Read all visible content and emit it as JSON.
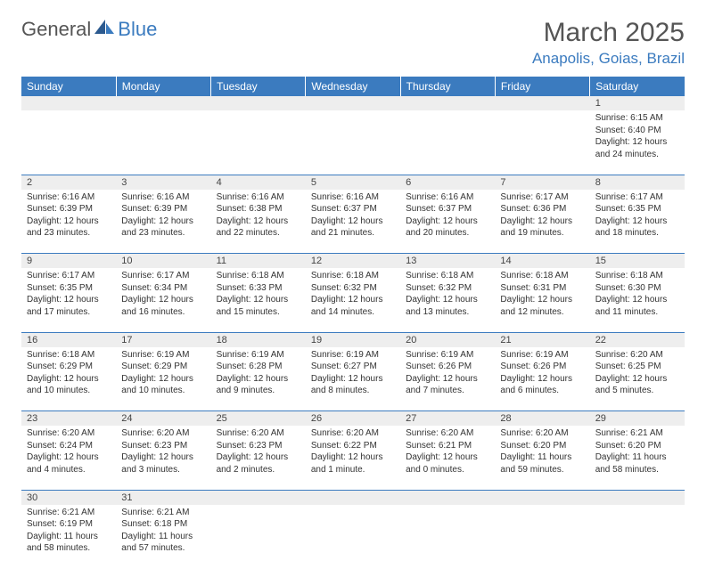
{
  "logo": {
    "word1": "General",
    "word2": "Blue"
  },
  "title": "March 2025",
  "location": "Anapolis, Goias, Brazil",
  "day_headers": [
    "Sunday",
    "Monday",
    "Tuesday",
    "Wednesday",
    "Thursday",
    "Friday",
    "Saturday"
  ],
  "colors": {
    "header_bg": "#3b7bbf",
    "header_text": "#ffffff",
    "daynum_bg": "#eeeeee",
    "border": "#3b7bbf",
    "location_text": "#3b7bbf"
  },
  "weeks": [
    [
      null,
      null,
      null,
      null,
      null,
      null,
      {
        "n": "1",
        "sr": "Sunrise: 6:15 AM",
        "ss": "Sunset: 6:40 PM",
        "d1": "Daylight: 12 hours",
        "d2": "and 24 minutes."
      }
    ],
    [
      {
        "n": "2",
        "sr": "Sunrise: 6:16 AM",
        "ss": "Sunset: 6:39 PM",
        "d1": "Daylight: 12 hours",
        "d2": "and 23 minutes."
      },
      {
        "n": "3",
        "sr": "Sunrise: 6:16 AM",
        "ss": "Sunset: 6:39 PM",
        "d1": "Daylight: 12 hours",
        "d2": "and 23 minutes."
      },
      {
        "n": "4",
        "sr": "Sunrise: 6:16 AM",
        "ss": "Sunset: 6:38 PM",
        "d1": "Daylight: 12 hours",
        "d2": "and 22 minutes."
      },
      {
        "n": "5",
        "sr": "Sunrise: 6:16 AM",
        "ss": "Sunset: 6:37 PM",
        "d1": "Daylight: 12 hours",
        "d2": "and 21 minutes."
      },
      {
        "n": "6",
        "sr": "Sunrise: 6:16 AM",
        "ss": "Sunset: 6:37 PM",
        "d1": "Daylight: 12 hours",
        "d2": "and 20 minutes."
      },
      {
        "n": "7",
        "sr": "Sunrise: 6:17 AM",
        "ss": "Sunset: 6:36 PM",
        "d1": "Daylight: 12 hours",
        "d2": "and 19 minutes."
      },
      {
        "n": "8",
        "sr": "Sunrise: 6:17 AM",
        "ss": "Sunset: 6:35 PM",
        "d1": "Daylight: 12 hours",
        "d2": "and 18 minutes."
      }
    ],
    [
      {
        "n": "9",
        "sr": "Sunrise: 6:17 AM",
        "ss": "Sunset: 6:35 PM",
        "d1": "Daylight: 12 hours",
        "d2": "and 17 minutes."
      },
      {
        "n": "10",
        "sr": "Sunrise: 6:17 AM",
        "ss": "Sunset: 6:34 PM",
        "d1": "Daylight: 12 hours",
        "d2": "and 16 minutes."
      },
      {
        "n": "11",
        "sr": "Sunrise: 6:18 AM",
        "ss": "Sunset: 6:33 PM",
        "d1": "Daylight: 12 hours",
        "d2": "and 15 minutes."
      },
      {
        "n": "12",
        "sr": "Sunrise: 6:18 AM",
        "ss": "Sunset: 6:32 PM",
        "d1": "Daylight: 12 hours",
        "d2": "and 14 minutes."
      },
      {
        "n": "13",
        "sr": "Sunrise: 6:18 AM",
        "ss": "Sunset: 6:32 PM",
        "d1": "Daylight: 12 hours",
        "d2": "and 13 minutes."
      },
      {
        "n": "14",
        "sr": "Sunrise: 6:18 AM",
        "ss": "Sunset: 6:31 PM",
        "d1": "Daylight: 12 hours",
        "d2": "and 12 minutes."
      },
      {
        "n": "15",
        "sr": "Sunrise: 6:18 AM",
        "ss": "Sunset: 6:30 PM",
        "d1": "Daylight: 12 hours",
        "d2": "and 11 minutes."
      }
    ],
    [
      {
        "n": "16",
        "sr": "Sunrise: 6:18 AM",
        "ss": "Sunset: 6:29 PM",
        "d1": "Daylight: 12 hours",
        "d2": "and 10 minutes."
      },
      {
        "n": "17",
        "sr": "Sunrise: 6:19 AM",
        "ss": "Sunset: 6:29 PM",
        "d1": "Daylight: 12 hours",
        "d2": "and 10 minutes."
      },
      {
        "n": "18",
        "sr": "Sunrise: 6:19 AM",
        "ss": "Sunset: 6:28 PM",
        "d1": "Daylight: 12 hours",
        "d2": "and 9 minutes."
      },
      {
        "n": "19",
        "sr": "Sunrise: 6:19 AM",
        "ss": "Sunset: 6:27 PM",
        "d1": "Daylight: 12 hours",
        "d2": "and 8 minutes."
      },
      {
        "n": "20",
        "sr": "Sunrise: 6:19 AM",
        "ss": "Sunset: 6:26 PM",
        "d1": "Daylight: 12 hours",
        "d2": "and 7 minutes."
      },
      {
        "n": "21",
        "sr": "Sunrise: 6:19 AM",
        "ss": "Sunset: 6:26 PM",
        "d1": "Daylight: 12 hours",
        "d2": "and 6 minutes."
      },
      {
        "n": "22",
        "sr": "Sunrise: 6:20 AM",
        "ss": "Sunset: 6:25 PM",
        "d1": "Daylight: 12 hours",
        "d2": "and 5 minutes."
      }
    ],
    [
      {
        "n": "23",
        "sr": "Sunrise: 6:20 AM",
        "ss": "Sunset: 6:24 PM",
        "d1": "Daylight: 12 hours",
        "d2": "and 4 minutes."
      },
      {
        "n": "24",
        "sr": "Sunrise: 6:20 AM",
        "ss": "Sunset: 6:23 PM",
        "d1": "Daylight: 12 hours",
        "d2": "and 3 minutes."
      },
      {
        "n": "25",
        "sr": "Sunrise: 6:20 AM",
        "ss": "Sunset: 6:23 PM",
        "d1": "Daylight: 12 hours",
        "d2": "and 2 minutes."
      },
      {
        "n": "26",
        "sr": "Sunrise: 6:20 AM",
        "ss": "Sunset: 6:22 PM",
        "d1": "Daylight: 12 hours",
        "d2": "and 1 minute."
      },
      {
        "n": "27",
        "sr": "Sunrise: 6:20 AM",
        "ss": "Sunset: 6:21 PM",
        "d1": "Daylight: 12 hours",
        "d2": "and 0 minutes."
      },
      {
        "n": "28",
        "sr": "Sunrise: 6:20 AM",
        "ss": "Sunset: 6:20 PM",
        "d1": "Daylight: 11 hours",
        "d2": "and 59 minutes."
      },
      {
        "n": "29",
        "sr": "Sunrise: 6:21 AM",
        "ss": "Sunset: 6:20 PM",
        "d1": "Daylight: 11 hours",
        "d2": "and 58 minutes."
      }
    ],
    [
      {
        "n": "30",
        "sr": "Sunrise: 6:21 AM",
        "ss": "Sunset: 6:19 PM",
        "d1": "Daylight: 11 hours",
        "d2": "and 58 minutes."
      },
      {
        "n": "31",
        "sr": "Sunrise: 6:21 AM",
        "ss": "Sunset: 6:18 PM",
        "d1": "Daylight: 11 hours",
        "d2": "and 57 minutes."
      },
      null,
      null,
      null,
      null,
      null
    ]
  ]
}
